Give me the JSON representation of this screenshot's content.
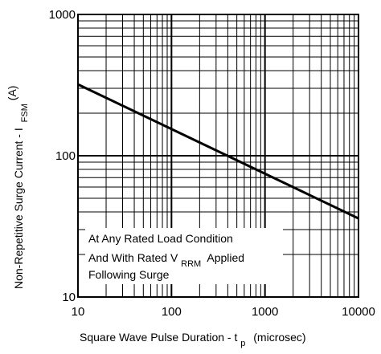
{
  "chart_data": {
    "type": "line",
    "x_scale": "log",
    "y_scale": "log",
    "xlim": [
      10,
      10000
    ],
    "ylim": [
      10,
      1000
    ],
    "grid": true,
    "x_ticks": [
      "10",
      "100",
      "1000",
      "10000"
    ],
    "y_ticks": [
      "10",
      "100",
      "1000"
    ],
    "xlabel": {
      "main": "Square Wave Pulse Duration - t",
      "sub": "p",
      "unit": "(microsec)"
    },
    "ylabel": {
      "main": "Non-Repetitive Surge Current - I",
      "sub": "FSM",
      "unit": "(A)"
    },
    "annotation": {
      "line1": "At Any Rated Load Condition",
      "line2_pre": "And With Rated V",
      "line2_sub": "RRM",
      "line2_post": "Applied",
      "line3": "Following Surge"
    },
    "series": [
      {
        "x": [
          10,
          10000
        ],
        "y": [
          320,
          36
        ],
        "color": "#000000"
      }
    ]
  }
}
